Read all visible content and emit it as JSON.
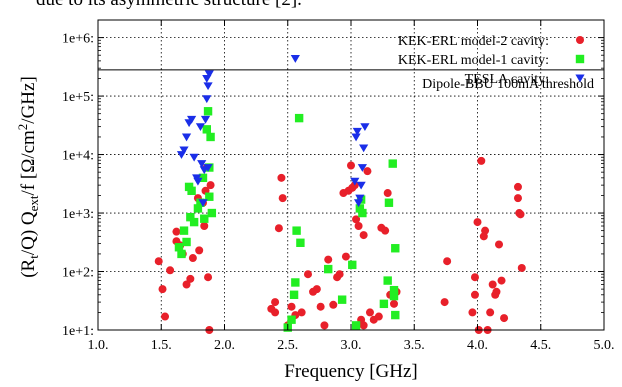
{
  "caption_fragment": "due to its asymmetric structure [2].",
  "chart_data": {
    "type": "scatter",
    "xlabel": "Frequency [GHz]",
    "ylabel_parts": {
      "pre": "(R",
      "sub1": "t",
      "mid": "/Q) Q",
      "sub2": "ext",
      "post": "/f [Ω/cm",
      "sup": "2",
      "end": "/GHz]"
    },
    "xlim": [
      1.0,
      5.0
    ],
    "ylim": [
      10,
      2000000
    ],
    "yscale": "log",
    "grid": true,
    "grid_style": "dotted",
    "legend_position": "top-right",
    "x_ticks": [
      {
        "value": 1.0,
        "label": "1.0."
      },
      {
        "value": 1.5,
        "label": "1.5."
      },
      {
        "value": 2.0,
        "label": "2.0."
      },
      {
        "value": 2.5,
        "label": "2.5."
      },
      {
        "value": 3.0,
        "label": "3.0."
      },
      {
        "value": 3.5,
        "label": "3.5."
      },
      {
        "value": 4.0,
        "label": "4.0."
      },
      {
        "value": 4.5,
        "label": "4.5."
      },
      {
        "value": 5.0,
        "label": "5.0."
      }
    ],
    "y_ticks": [
      {
        "value": 10,
        "label": "1e+1:"
      },
      {
        "value": 100,
        "label": "1e+2:"
      },
      {
        "value": 1000,
        "label": "1e+3:"
      },
      {
        "value": 10000,
        "label": "1e+4:"
      },
      {
        "value": 100000,
        "label": "1e+5:"
      },
      {
        "value": 1000000,
        "label": "1e+6:"
      }
    ],
    "threshold": {
      "label": "Dipole-BBU 100mA threshold",
      "value": 280000,
      "x_start": 2.6
    },
    "series": [
      {
        "name": "KEK-ERL model-2 cavity:",
        "marker": "circle",
        "color": "#e8202a",
        "points": [
          [
            1.48,
            150
          ],
          [
            1.51,
            50
          ],
          [
            1.53,
            17
          ],
          [
            1.57,
            105
          ],
          [
            1.62,
            330
          ],
          [
            1.62,
            480
          ],
          [
            1.65,
            280
          ],
          [
            1.67,
            200
          ],
          [
            1.7,
            60
          ],
          [
            1.73,
            75
          ],
          [
            1.75,
            170
          ],
          [
            1.79,
            1800
          ],
          [
            1.8,
            230
          ],
          [
            1.83,
            1500
          ],
          [
            1.84,
            600
          ],
          [
            1.85,
            2400
          ],
          [
            1.87,
            80
          ],
          [
            1.88,
            10
          ],
          [
            1.89,
            3000
          ],
          [
            1.86,
            6000
          ],
          [
            2.37,
            23
          ],
          [
            2.4,
            20
          ],
          [
            2.4,
            30
          ],
          [
            2.43,
            550
          ],
          [
            2.45,
            4000
          ],
          [
            2.46,
            1800
          ],
          [
            2.5,
            12
          ],
          [
            2.53,
            25
          ],
          [
            2.56,
            18
          ],
          [
            2.61,
            20
          ],
          [
            2.66,
            90
          ],
          [
            2.7,
            45
          ],
          [
            2.73,
            50
          ],
          [
            2.76,
            25
          ],
          [
            2.79,
            12
          ],
          [
            2.82,
            160
          ],
          [
            2.86,
            27
          ],
          [
            2.89,
            80
          ],
          [
            2.91,
            90
          ],
          [
            2.94,
            2200
          ],
          [
            2.96,
            180
          ],
          [
            2.98,
            2400
          ],
          [
            3.0,
            6500
          ],
          [
            3.01,
            2700
          ],
          [
            3.03,
            3000
          ],
          [
            3.04,
            780
          ],
          [
            3.06,
            600
          ],
          [
            3.08,
            15
          ],
          [
            3.1,
            12
          ],
          [
            3.1,
            420
          ],
          [
            3.13,
            5200
          ],
          [
            3.15,
            20
          ],
          [
            3.18,
            15
          ],
          [
            3.22,
            17
          ],
          [
            3.24,
            560
          ],
          [
            3.27,
            500
          ],
          [
            3.29,
            2200
          ],
          [
            3.31,
            40
          ],
          [
            3.34,
            28
          ],
          [
            3.36,
            45
          ],
          [
            3.74,
            30
          ],
          [
            3.76,
            150
          ],
          [
            3.96,
            20
          ],
          [
            3.98,
            40
          ],
          [
            3.98,
            80
          ],
          [
            4.0,
            700
          ],
          [
            4.01,
            10
          ],
          [
            4.03,
            7800
          ],
          [
            4.05,
            400
          ],
          [
            4.06,
            500
          ],
          [
            4.08,
            10
          ],
          [
            4.1,
            20
          ],
          [
            4.12,
            60
          ],
          [
            4.14,
            40
          ],
          [
            4.15,
            45
          ],
          [
            4.17,
            290
          ],
          [
            4.19,
            70
          ],
          [
            4.21,
            16
          ],
          [
            4.32,
            2800
          ],
          [
            4.32,
            1800
          ],
          [
            4.33,
            1000
          ],
          [
            4.34,
            950
          ],
          [
            4.35,
            115
          ]
        ]
      },
      {
        "name": "KEK-ERL model-1 cavity:",
        "marker": "square",
        "color": "#22ee22",
        "points": [
          [
            1.64,
            260
          ],
          [
            1.66,
            200
          ],
          [
            1.68,
            500
          ],
          [
            1.7,
            320
          ],
          [
            1.72,
            2800
          ],
          [
            1.73,
            850
          ],
          [
            1.74,
            2400
          ],
          [
            1.76,
            700
          ],
          [
            1.79,
            1200
          ],
          [
            1.81,
            1500
          ],
          [
            1.83,
            4000
          ],
          [
            1.84,
            800
          ],
          [
            1.86,
            27000
          ],
          [
            1.87,
            55000
          ],
          [
            1.88,
            1900
          ],
          [
            1.88,
            6000
          ],
          [
            1.89,
            20000
          ],
          [
            1.9,
            1000
          ],
          [
            2.5,
            11
          ],
          [
            2.53,
            15
          ],
          [
            2.55,
            40
          ],
          [
            2.56,
            65
          ],
          [
            2.57,
            500
          ],
          [
            2.59,
            42000
          ],
          [
            2.6,
            310
          ],
          [
            2.82,
            110
          ],
          [
            2.93,
            33
          ],
          [
            3.01,
            130
          ],
          [
            3.04,
            12
          ],
          [
            3.07,
            1200
          ],
          [
            3.08,
            1700
          ],
          [
            3.09,
            1000
          ],
          [
            3.26,
            28
          ],
          [
            3.29,
            70
          ],
          [
            3.3,
            1500
          ],
          [
            3.33,
            7000
          ],
          [
            3.34,
            48
          ],
          [
            3.34,
            38
          ],
          [
            3.35,
            18
          ],
          [
            3.35,
            250
          ]
        ]
      },
      {
        "name": "TESLA cavity:",
        "marker": "triangle-down",
        "color": "#1a2ee8",
        "points": [
          [
            1.66,
            10000
          ],
          [
            1.68,
            12000
          ],
          [
            1.7,
            20000
          ],
          [
            1.72,
            35000
          ],
          [
            1.74,
            40000
          ],
          [
            1.76,
            9000
          ],
          [
            1.78,
            4000
          ],
          [
            1.79,
            3500
          ],
          [
            1.81,
            30000
          ],
          [
            1.82,
            7000
          ],
          [
            1.83,
            1500
          ],
          [
            1.84,
            5500
          ],
          [
            1.85,
            40000
          ],
          [
            1.86,
            90000
          ],
          [
            1.87,
            150000
          ],
          [
            1.88,
            240000
          ],
          [
            1.86,
            200000
          ],
          [
            1.87,
            6000
          ],
          [
            2.56,
            440000
          ],
          [
            3.03,
            3500
          ],
          [
            3.04,
            20000
          ],
          [
            3.05,
            25000
          ],
          [
            3.06,
            1500
          ],
          [
            3.07,
            1800
          ],
          [
            3.08,
            3000
          ],
          [
            3.09,
            6000
          ],
          [
            3.1,
            13000
          ],
          [
            3.11,
            30000
          ]
        ]
      }
    ]
  }
}
